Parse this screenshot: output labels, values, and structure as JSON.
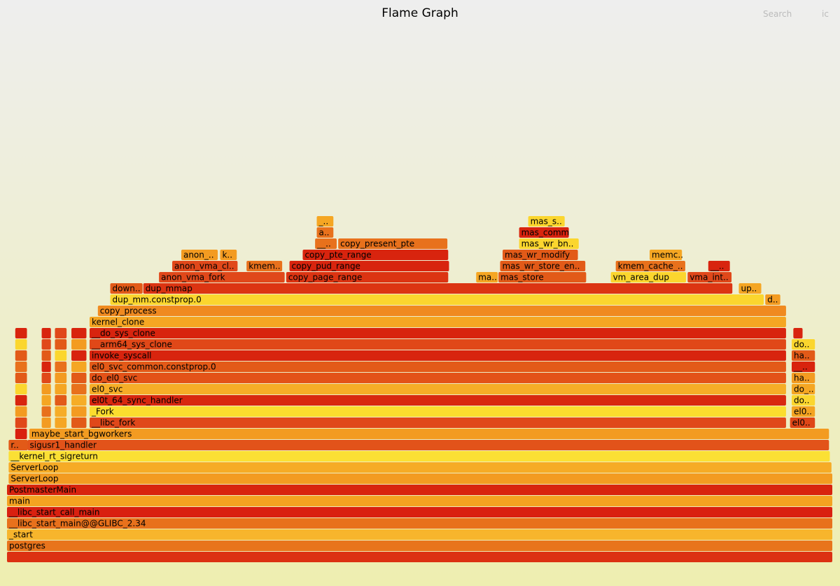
{
  "chart_data": {
    "type": "flame",
    "title": "Flame Graph",
    "search": "Search",
    "ic": "ic",
    "frames": [
      {
        "label": null,
        "depth": 0,
        "start": 0,
        "width": 100,
        "color": "#dc3112"
      },
      {
        "label": "postgres",
        "depth": 1,
        "start": 0,
        "width": 100,
        "color": "#e8741c"
      },
      {
        "label": "_start",
        "depth": 2,
        "start": 0,
        "width": 100,
        "color": "#f7b52c"
      },
      {
        "label": "__libc_start_main@@GLIBC_2.34",
        "depth": 3,
        "start": 0,
        "width": 100,
        "color": "#e8711c"
      },
      {
        "label": "__libc_start_call_main",
        "depth": 4,
        "start": 0,
        "width": 100,
        "color": "#d92010"
      },
      {
        "label": "main",
        "depth": 5,
        "start": 0,
        "width": 100,
        "color": "#f4a321"
      },
      {
        "label": "PostmasterMain",
        "depth": 6,
        "start": 0,
        "width": 100,
        "color": "#d8240e"
      },
      {
        "label": "ServerLoop",
        "depth": 7,
        "start": 0.2,
        "width": 99.8,
        "color": "#f39b21"
      },
      {
        "label": "ServerLoop",
        "depth": 8,
        "start": 0.2,
        "width": 99.7,
        "color": "#f6ab26"
      },
      {
        "label": "__kernel_rt_sigreturn",
        "depth": 9,
        "start": 0.2,
        "width": 99.5,
        "color": "#fbe034"
      },
      {
        "label": "r..",
        "depth": 10,
        "start": 0.2,
        "width": 2.4,
        "color": "#e25a18"
      },
      {
        "label": "sigusr1_handler",
        "depth": 10,
        "start": 2.5,
        "width": 97.1,
        "color": "#e2531a"
      },
      {
        "label": null,
        "depth": 11,
        "start": 1.0,
        "width": 1.5,
        "color": "#d9200e"
      },
      {
        "label": "maybe_start_bgworkers",
        "depth": 11,
        "start": 2.7,
        "width": 96.9,
        "color": "#f39b21"
      },
      {
        "label": "__libc_fork",
        "depth": 12,
        "start": 10.0,
        "width": 84.4,
        "color": "#e0481a"
      },
      {
        "label": "el0..",
        "depth": 12,
        "start": 94.8,
        "width": 3.1,
        "color": "#df4616"
      },
      {
        "label": "_Fork",
        "depth": 13,
        "start": 10.0,
        "width": 84.4,
        "color": "#fbdd2e"
      },
      {
        "label": "el0..",
        "depth": 13,
        "start": 95.0,
        "width": 2.9,
        "color": "#f4a321"
      },
      {
        "label": "el0t_64_sync_handler",
        "depth": 14,
        "start": 10.0,
        "width": 84.4,
        "color": "#d8280f"
      },
      {
        "label": "do..",
        "depth": 14,
        "start": 95.0,
        "width": 2.9,
        "color": "#fbd62e"
      },
      {
        "label": "el0_svc",
        "depth": 15,
        "start": 10.0,
        "width": 84.4,
        "color": "#f6ad27"
      },
      {
        "label": "do_..",
        "depth": 15,
        "start": 95.0,
        "width": 2.9,
        "color": "#f5a623"
      },
      {
        "label": "do_el0_svc",
        "depth": 16,
        "start": 10.0,
        "width": 84.4,
        "color": "#e35218"
      },
      {
        "label": "ha..",
        "depth": 16,
        "start": 95.0,
        "width": 2.9,
        "color": "#f39b21"
      },
      {
        "label": "el0_svc_common.constprop.0",
        "depth": 17,
        "start": 10.0,
        "width": 84.4,
        "color": "#e35a18"
      },
      {
        "label": "__..",
        "depth": 17,
        "start": 95.0,
        "width": 2.9,
        "color": "#d8240e"
      },
      {
        "label": "invoke_syscall",
        "depth": 18,
        "start": 10.0,
        "width": 84.4,
        "color": "#d8240e"
      },
      {
        "label": "ha..",
        "depth": 18,
        "start": 95.0,
        "width": 2.9,
        "color": "#e25a18"
      },
      {
        "label": "__arm64_sys_clone",
        "depth": 19,
        "start": 10.0,
        "width": 84.4,
        "color": "#e04818"
      },
      {
        "label": "do..",
        "depth": 19,
        "start": 95.0,
        "width": 2.9,
        "color": "#fbd62e"
      },
      {
        "label": "__do_sys_clone",
        "depth": 20,
        "start": 10.0,
        "width": 84.4,
        "color": "#d8240e"
      },
      {
        "label": null,
        "depth": 20,
        "start": 95.2,
        "width": 1.2,
        "color": "#d8240e"
      },
      {
        "label": "kernel_clone",
        "depth": 21,
        "start": 10.0,
        "width": 84.4,
        "color": "#f5a623"
      },
      {
        "label": "copy_process",
        "depth": 22,
        "start": 11.0,
        "width": 83.4,
        "color": "#f08a20"
      },
      {
        "label": "dup_mm.constprop.0",
        "depth": 23,
        "start": 12.5,
        "width": 79.2,
        "color": "#fbd62e"
      },
      {
        "label": "d..",
        "depth": 23,
        "start": 91.8,
        "width": 1.9,
        "color": "#f39b21"
      },
      {
        "label": "down..",
        "depth": 24,
        "start": 12.5,
        "width": 4.0,
        "color": "#e25a18"
      },
      {
        "label": "dup_mmap",
        "depth": 24,
        "start": 16.5,
        "width": 71.4,
        "color": "#dc3412"
      },
      {
        "label": "up..",
        "depth": 24,
        "start": 88.6,
        "width": 2.8,
        "color": "#f5a623"
      },
      {
        "label": "anon_vma_fork",
        "depth": 25,
        "start": 18.4,
        "width": 15.3,
        "color": "#e0481a"
      },
      {
        "label": "copy_page_range",
        "depth": 25,
        "start": 33.8,
        "width": 19.7,
        "color": "#dc3412"
      },
      {
        "label": "ma..",
        "depth": 25,
        "start": 56.8,
        "width": 2.7,
        "color": "#f5a623"
      },
      {
        "label": "mas_store",
        "depth": 25,
        "start": 59.5,
        "width": 10.7,
        "color": "#e25a18"
      },
      {
        "label": "vm_area_dup",
        "depth": 25,
        "start": 73.1,
        "width": 9.2,
        "color": "#fbd62e"
      },
      {
        "label": "vma_int..",
        "depth": 25,
        "start": 82.4,
        "width": 5.4,
        "color": "#e0481a"
      },
      {
        "label": "anon_vma_cl..",
        "depth": 26,
        "start": 20.0,
        "width": 8.0,
        "color": "#e0481a"
      },
      {
        "label": "kmem..",
        "depth": 26,
        "start": 29.0,
        "width": 4.4,
        "color": "#e8711c"
      },
      {
        "label": "copy_pud_range",
        "depth": 26,
        "start": 34.2,
        "width": 19.4,
        "color": "#d8240e"
      },
      {
        "label": "mas_wr_store_en..",
        "depth": 26,
        "start": 59.7,
        "width": 10.4,
        "color": "#e25a18"
      },
      {
        "label": "kmem_cache_..",
        "depth": 26,
        "start": 73.7,
        "width": 8.5,
        "color": "#e8711c"
      },
      {
        "label": "__..",
        "depth": 26,
        "start": 84.9,
        "width": 2.7,
        "color": "#d8240e"
      },
      {
        "label": "anon_..",
        "depth": 27,
        "start": 21.1,
        "width": 4.5,
        "color": "#f39b21"
      },
      {
        "label": "k..",
        "depth": 27,
        "start": 25.8,
        "width": 2.1,
        "color": "#f39b21"
      },
      {
        "label": "copy_pte_range",
        "depth": 27,
        "start": 35.8,
        "width": 17.7,
        "color": "#d8240e"
      },
      {
        "label": "mas_wr_modify",
        "depth": 27,
        "start": 60.0,
        "width": 9.2,
        "color": "#e25a18"
      },
      {
        "label": "memc..",
        "depth": 27,
        "start": 77.8,
        "width": 4.0,
        "color": "#f5a623"
      },
      {
        "label": "__..",
        "depth": 28,
        "start": 37.3,
        "width": 2.7,
        "color": "#e8711c"
      },
      {
        "label": "copy_present_pte",
        "depth": 28,
        "start": 40.1,
        "width": 13.3,
        "color": "#e8711c"
      },
      {
        "label": "mas_wr_bn..",
        "depth": 28,
        "start": 62.0,
        "width": 7.3,
        "color": "#fbd62e"
      },
      {
        "label": "a..",
        "depth": 29,
        "start": 37.5,
        "width": 2.1,
        "color": "#e8711c"
      },
      {
        "label": "mas_comm",
        "depth": 29,
        "start": 62.0,
        "width": 6.1,
        "color": "#d8240e"
      },
      {
        "label": "_..",
        "depth": 30,
        "start": 37.5,
        "width": 2.1,
        "color": "#f5a623"
      },
      {
        "label": "mas_s..",
        "depth": 30,
        "start": 63.1,
        "width": 4.5,
        "color": "#fbd62e"
      },
      {
        "label": null,
        "depth": 12,
        "start": 1.0,
        "width": 1.5,
        "color": "#e0481a"
      },
      {
        "label": null,
        "depth": 12,
        "start": 4.2,
        "width": 1.2,
        "color": "#f39b21"
      },
      {
        "label": null,
        "depth": 12,
        "start": 5.8,
        "width": 1.5,
        "color": "#f5a623"
      },
      {
        "label": null,
        "depth": 12,
        "start": 7.8,
        "width": 1.9,
        "color": "#e25a18"
      },
      {
        "label": null,
        "depth": 13,
        "start": 1.0,
        "width": 1.5,
        "color": "#f39b21"
      },
      {
        "label": null,
        "depth": 13,
        "start": 4.2,
        "width": 1.2,
        "color": "#e8711c"
      },
      {
        "label": null,
        "depth": 13,
        "start": 5.8,
        "width": 1.5,
        "color": "#f6ad27"
      },
      {
        "label": null,
        "depth": 13,
        "start": 7.8,
        "width": 1.9,
        "color": "#f39b21"
      },
      {
        "label": null,
        "depth": 14,
        "start": 1.0,
        "width": 1.5,
        "color": "#d8240e"
      },
      {
        "label": null,
        "depth": 14,
        "start": 4.2,
        "width": 1.2,
        "color": "#f5a623"
      },
      {
        "label": null,
        "depth": 14,
        "start": 5.8,
        "width": 1.5,
        "color": "#e25a18"
      },
      {
        "label": null,
        "depth": 14,
        "start": 7.8,
        "width": 1.9,
        "color": "#f6ad27"
      },
      {
        "label": null,
        "depth": 15,
        "start": 1.0,
        "width": 1.5,
        "color": "#fbd62e"
      },
      {
        "label": null,
        "depth": 15,
        "start": 4.2,
        "width": 1.2,
        "color": "#f39b21"
      },
      {
        "label": null,
        "depth": 15,
        "start": 5.8,
        "width": 1.5,
        "color": "#f5a623"
      },
      {
        "label": null,
        "depth": 15,
        "start": 7.8,
        "width": 1.9,
        "color": "#e8711c"
      },
      {
        "label": null,
        "depth": 16,
        "start": 1.0,
        "width": 1.5,
        "color": "#e25a18"
      },
      {
        "label": null,
        "depth": 16,
        "start": 4.2,
        "width": 1.2,
        "color": "#e0481a"
      },
      {
        "label": null,
        "depth": 16,
        "start": 5.8,
        "width": 1.5,
        "color": "#f39b21"
      },
      {
        "label": null,
        "depth": 16,
        "start": 7.8,
        "width": 1.9,
        "color": "#e25a18"
      },
      {
        "label": null,
        "depth": 17,
        "start": 1.0,
        "width": 1.5,
        "color": "#e8711c"
      },
      {
        "label": null,
        "depth": 17,
        "start": 4.2,
        "width": 1.2,
        "color": "#d8240e"
      },
      {
        "label": null,
        "depth": 17,
        "start": 5.8,
        "width": 1.5,
        "color": "#e8711c"
      },
      {
        "label": null,
        "depth": 17,
        "start": 7.8,
        "width": 1.9,
        "color": "#f5a623"
      },
      {
        "label": null,
        "depth": 18,
        "start": 1.0,
        "width": 1.5,
        "color": "#e25a18"
      },
      {
        "label": null,
        "depth": 18,
        "start": 4.2,
        "width": 1.2,
        "color": "#e25a18"
      },
      {
        "label": null,
        "depth": 18,
        "start": 5.8,
        "width": 1.5,
        "color": "#fbd62e"
      },
      {
        "label": null,
        "depth": 18,
        "start": 7.8,
        "width": 1.9,
        "color": "#d8240e"
      },
      {
        "label": null,
        "depth": 19,
        "start": 1.0,
        "width": 1.5,
        "color": "#fbd62e"
      },
      {
        "label": null,
        "depth": 19,
        "start": 4.2,
        "width": 1.2,
        "color": "#e0481a"
      },
      {
        "label": null,
        "depth": 19,
        "start": 5.8,
        "width": 1.5,
        "color": "#e25a18"
      },
      {
        "label": null,
        "depth": 19,
        "start": 7.8,
        "width": 1.9,
        "color": "#f39b21"
      },
      {
        "label": null,
        "depth": 20,
        "start": 1.0,
        "width": 1.5,
        "color": "#d8240e"
      },
      {
        "label": null,
        "depth": 20,
        "start": 4.2,
        "width": 1.2,
        "color": "#d8240e"
      },
      {
        "label": null,
        "depth": 20,
        "start": 5.8,
        "width": 1.5,
        "color": "#e0481a"
      },
      {
        "label": null,
        "depth": 20,
        "start": 7.8,
        "width": 1.9,
        "color": "#d8240e"
      }
    ]
  }
}
